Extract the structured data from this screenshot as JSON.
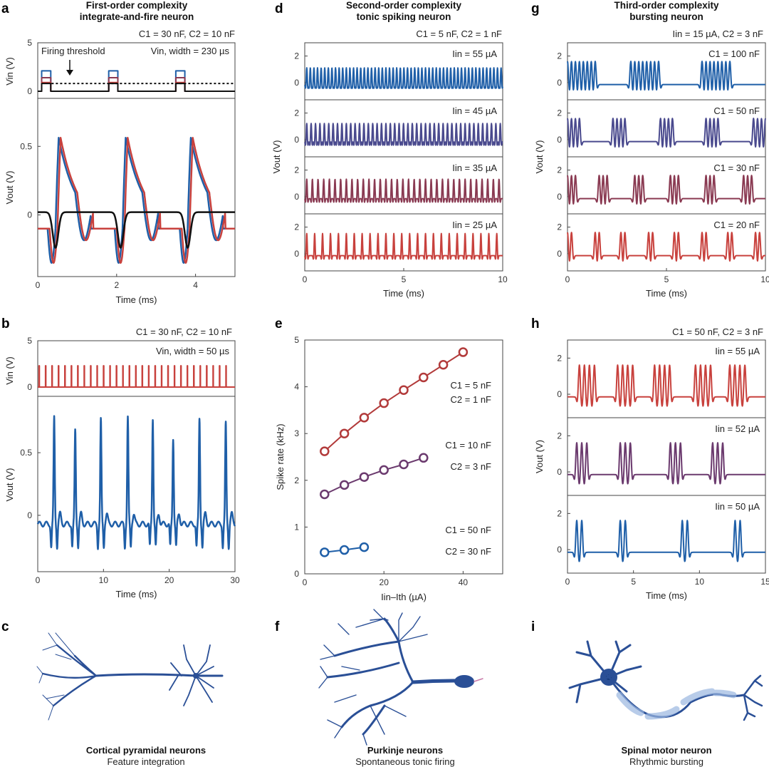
{
  "figure": {
    "colors": {
      "blue": "#1f5fa8",
      "purple_blue": "#4a4a8e",
      "purple": "#6b3a6e",
      "maroon": "#8a3a52",
      "red": "#c8413d",
      "black": "#111111"
    },
    "panels": {
      "a": {
        "label": "a",
        "title_line1": "First-order complexity",
        "title_line2": "integrate-and-fire neuron",
        "params": "C1 = 30 nF, C2 = 10 nF",
        "vin_note": "Vin, width = 230 µs",
        "threshold_note": "Firing threshold"
      },
      "b": {
        "label": "b",
        "params": "C1 = 30 nF, C2 = 10 nF",
        "vin_note": "Vin, width = 50 µs"
      },
      "c": {
        "label": "c",
        "caption_bold": "Cortical pyramidal neurons",
        "caption": "Feature integration"
      },
      "d": {
        "label": "d",
        "title_line1": "Second-order complexity",
        "title_line2": "tonic spiking neuron",
        "params": "C1 = 5 nF, C2 = 1 nF"
      },
      "e": {
        "label": "e"
      },
      "f": {
        "label": "f",
        "caption_bold": "Purkinje neurons",
        "caption": "Spontaneous tonic firing"
      },
      "g": {
        "label": "g",
        "title_line1": "Third-order complexity",
        "title_line2": "bursting neuron",
        "params": "Iin = 15 µA, C2 = 3 nF"
      },
      "h": {
        "label": "h",
        "params": "C1 = 50 nF, C2 = 3 nF"
      },
      "i": {
        "label": "i",
        "caption_bold": "Spinal motor neuron",
        "caption": "Rhythmic bursting"
      }
    }
  },
  "chart_data": [
    {
      "id": "a",
      "type": "line",
      "title": "First-order complexity integrate-and-fire neuron",
      "subplots": [
        {
          "ylabel": "Vin (V)",
          "ylim": [
            0,
            5
          ],
          "yticks": [
            "0",
            "5"
          ],
          "series": [
            {
              "name": "Vin pulses",
              "color": "multi",
              "pulse_times_ms": [
                0.1,
                1.8,
                3.5
              ],
              "pulse_width_us": 230,
              "levels_V": [
                2.1,
                1.4,
                0.9,
                0.8
              ]
            },
            {
              "name": "Firing threshold",
              "style": "dotted",
              "value_V": 0.8
            }
          ]
        },
        {
          "ylabel": "Vout (V)",
          "ylim": [
            -0.35,
            0.85
          ],
          "yticks": [
            "0",
            "0.5"
          ],
          "series": [
            {
              "name": "blue",
              "color": "#1f5fa8",
              "spike_times_ms": [
                0.45,
                2.15,
                3.8
              ],
              "peak": 0.69
            },
            {
              "name": "red",
              "color": "#c8413d",
              "spike_times_ms": [
                0.5,
                2.2,
                3.85
              ],
              "peak": 0.69
            },
            {
              "name": "black (sub-threshold)",
              "color": "#111111",
              "dip_times_ms": [
                0.45,
                2.1,
                3.8
              ],
              "dip": -0.24
            }
          ]
        }
      ],
      "xlabel": "Time (ms)",
      "xlim": [
        0,
        5
      ],
      "xticks": [
        "0",
        "2",
        "4"
      ]
    },
    {
      "id": "b",
      "type": "line",
      "subplots": [
        {
          "ylabel": "Vin (V)",
          "ylim": [
            0,
            5
          ],
          "yticks": [
            "0",
            "5"
          ],
          "series": [
            {
              "name": "Vin",
              "color": "#c8413d",
              "pulse_count": 30,
              "amplitude_V": 2.3,
              "period_ms": 1.0
            }
          ]
        },
        {
          "ylabel": "Vout (V)",
          "ylim": [
            -0.45,
            0.95
          ],
          "yticks": [
            "0",
            "0.5"
          ],
          "series": [
            {
              "name": "Vout",
              "color": "#1f5fa8",
              "spike_times_ms": [
                2.5,
                5.7,
                9.6,
                13.7,
                17.5,
                20.6,
                24.6,
                28.6
              ],
              "spike_peaks_V": [
                0.78,
                0.68,
                0.76,
                0.78,
                0.78,
                0.62,
                0.77,
                0.73
              ]
            }
          ]
        }
      ],
      "xlabel": "Time (ms)",
      "xlim": [
        0,
        30
      ],
      "xticks": [
        "0",
        "10",
        "20",
        "30"
      ]
    },
    {
      "id": "d",
      "type": "line",
      "ylabel": "Vout (V)",
      "xlabel": "Time (ms)",
      "xlim": [
        0,
        10
      ],
      "xticks": [
        "0",
        "5",
        "10"
      ],
      "yticks": [
        "0",
        "2"
      ],
      "series": [
        {
          "name": "Iin = 55 µA",
          "color": "#1f5fa8",
          "spike_count": 55,
          "peak": 1.1
        },
        {
          "name": "Iin = 45 µA",
          "color": "#4a4a8e",
          "spike_count": 45,
          "peak": 1.2
        },
        {
          "name": "Iin = 35 µA",
          "color": "#8a3a52",
          "spike_count": 35,
          "peak": 1.3
        },
        {
          "name": "Iin = 25 µA",
          "color": "#c8413d",
          "spike_count": 25,
          "peak": 1.5
        }
      ]
    },
    {
      "id": "e",
      "type": "scatter",
      "xlabel": "Iin–Ith (µA)",
      "ylabel": "Spike rate (kHz)",
      "xlim": [
        0,
        50
      ],
      "ylim": [
        0,
        5
      ],
      "xticks": [
        "0",
        "20",
        "40"
      ],
      "yticks": [
        "0",
        "1",
        "2",
        "3",
        "4",
        "5"
      ],
      "series": [
        {
          "name": "C1 = 5 nF, C2 = 1 nF",
          "label1": "C1 = 5 nF",
          "label2": "C2 = 1 nF",
          "color": "#b23a3a",
          "x": [
            5,
            10,
            15,
            20,
            25,
            30,
            35,
            40
          ],
          "y": [
            2.62,
            3.0,
            3.34,
            3.65,
            3.93,
            4.2,
            4.47,
            4.74
          ]
        },
        {
          "name": "C1 = 10 nF, C2 = 3 nF",
          "label1": "C1 = 10 nF",
          "label2": "C2 = 3 nF",
          "color": "#6b3a6e",
          "x": [
            5,
            10,
            15,
            20,
            25,
            30
          ],
          "y": [
            1.7,
            1.9,
            2.07,
            2.22,
            2.34,
            2.48
          ]
        },
        {
          "name": "C1 = 50 nF, C2 = 30 nF",
          "label1": "C1 = 50 nF",
          "label2": "C2 = 30 nF",
          "color": "#1f5fa8",
          "x": [
            5,
            10,
            15
          ],
          "y": [
            0.46,
            0.51,
            0.57
          ]
        }
      ]
    },
    {
      "id": "g",
      "type": "line",
      "ylabel": "Vout (V)",
      "xlabel": "Time (ms)",
      "xlim": [
        0,
        10
      ],
      "xticks": [
        "0",
        "5",
        "10"
      ],
      "yticks": [
        "0",
        "2"
      ],
      "series": [
        {
          "name": "C1 = 100 nF",
          "color": "#1f5fa8",
          "burst_starts_ms": [
            0.0,
            3.2,
            6.8
          ],
          "spikes_per_burst": 8
        },
        {
          "name": "C1 = 50 nF",
          "color": "#4a4a8e",
          "burst_starts_ms": [
            0.0,
            2.3,
            4.7,
            7.0,
            9.4
          ],
          "spikes_per_burst": 4
        },
        {
          "name": "C1 = 30 nF",
          "color": "#8a3a52",
          "burst_starts_ms": [
            0.0,
            1.6,
            3.4,
            5.2,
            7.0,
            8.9
          ],
          "spikes_per_burst": 3
        },
        {
          "name": "C1 = 20 nF",
          "color": "#c8413d",
          "burst_starts_ms": [
            0.0,
            1.4,
            2.7,
            4.1,
            5.4,
            6.8,
            8.1,
            9.5
          ],
          "spikes_per_burst": 2
        }
      ]
    },
    {
      "id": "h",
      "type": "line",
      "ylabel": "Vout (V)",
      "xlabel": "Time (ms)",
      "xlim": [
        0,
        15
      ],
      "xticks": [
        "0",
        "5",
        "10",
        "15"
      ],
      "yticks": [
        "0",
        "2"
      ],
      "series": [
        {
          "name": "Iin = 55 µA",
          "color": "#c8413d",
          "burst_starts_ms": [
            0.9,
            3.8,
            6.6,
            9.7,
            12.3
          ],
          "spikes_per_burst": 4
        },
        {
          "name": "Iin = 52 µA",
          "color": "#6b3a6e",
          "burst_starts_ms": [
            0.7,
            4.0,
            7.8,
            11.0
          ],
          "spikes_per_burst": 3
        },
        {
          "name": "Iin = 50 µA",
          "color": "#1f5fa8",
          "burst_starts_ms": [
            0.7,
            4.0,
            8.7,
            12.7
          ],
          "spikes_per_burst": 2
        }
      ]
    }
  ]
}
